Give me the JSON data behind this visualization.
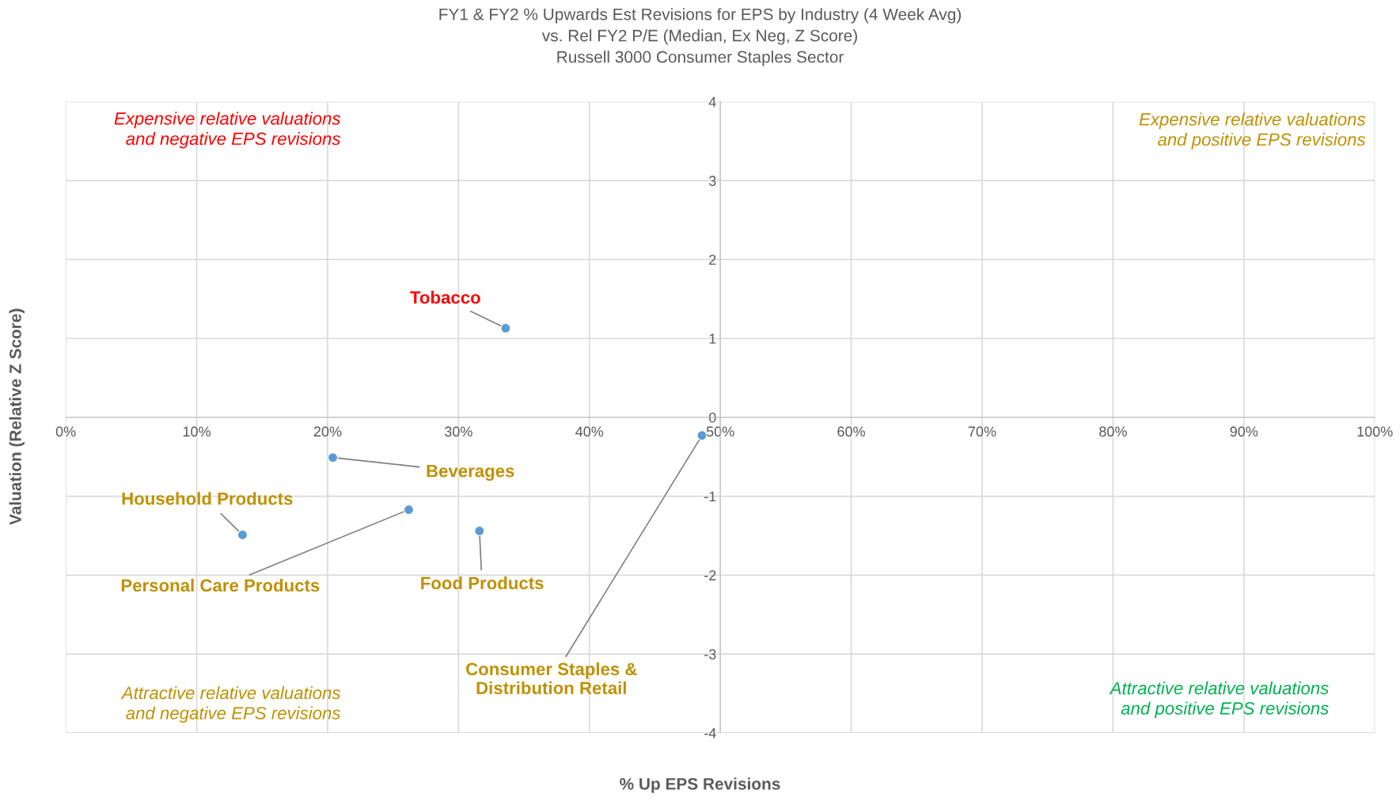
{
  "chart_data": {
    "type": "scatter",
    "title": "FY1 & FY2 % Upwards Est Revisions for EPS by Industry (4 Week Avg)\nvs. Rel FY2 P/E (Median, Ex Neg, Z Score)\nRussell 3000 Consumer Staples Sector",
    "xlabel": "% Up EPS Revisions",
    "ylabel": "Valuation (Relative Z Score)",
    "x": [
      33.6,
      20.4,
      13.5,
      26.2,
      31.6,
      48.6
    ],
    "series": [
      {
        "color": "#5b9bd5",
        "values": [
          1.13,
          -0.51,
          -1.49,
          -1.17,
          -1.44,
          -0.23
        ]
      }
    ],
    "xlim": [
      0,
      100
    ],
    "xticks": [
      {
        "value": 0,
        "label": "0%"
      },
      {
        "value": 10,
        "label": "10%"
      },
      {
        "value": 20,
        "label": "20%"
      },
      {
        "value": 30,
        "label": "30%"
      },
      {
        "value": 40,
        "label": "40%"
      },
      {
        "value": 50,
        "label": "50%"
      },
      {
        "value": 60,
        "label": "60%"
      },
      {
        "value": 70,
        "label": "70%"
      },
      {
        "value": 80,
        "label": "80%"
      },
      {
        "value": 90,
        "label": "90%"
      },
      {
        "value": 100,
        "label": "100%"
      }
    ],
    "ylim": [
      -4,
      4
    ],
    "yticks": [
      -4,
      -3,
      -2,
      -1,
      0,
      1,
      2,
      3,
      4
    ],
    "grid": true,
    "marker": "circle",
    "annotations": [
      {
        "text": "Tobacco",
        "x": 33.6,
        "y": 1.13
      },
      {
        "text": "Beverages",
        "x": 20.4,
        "y": -0.51
      },
      {
        "text": "Household Products",
        "x": 13.5,
        "y": -1.49
      },
      {
        "text": "Personal Care Products",
        "x": 26.2,
        "y": -1.17
      },
      {
        "text": "Food Products",
        "x": 31.6,
        "y": -1.44
      },
      {
        "text": "Consumer Staples &\nDistribution Retail",
        "x": 48.6,
        "y": -0.23
      },
      "Expensive relative valuations\nand negative EPS revisions",
      "Expensive relative valuations\nand positive EPS revisions",
      "Attractive relative valuations\nand negative EPS revisions",
      "Attractive relative valuations\nand positive EPS revisions"
    ]
  }
}
